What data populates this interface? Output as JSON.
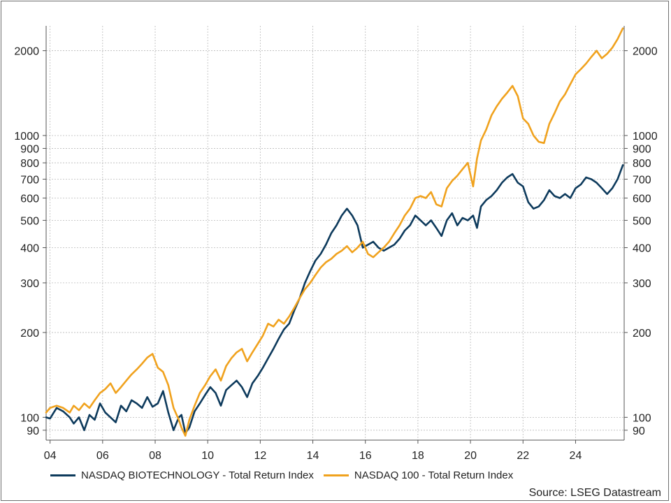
{
  "chart_data": {
    "type": "line",
    "title": "",
    "xlabel": "",
    "ylabel": "",
    "y_scale": "log",
    "ylim": [
      83,
      2450
    ],
    "xlim": [
      2003.85,
      2025.85
    ],
    "grid": true,
    "legend_placement": "bottom-left",
    "x_tick_labels": [
      "04",
      "06",
      "08",
      "10",
      "12",
      "14",
      "16",
      "18",
      "20",
      "22",
      "24"
    ],
    "x_tick_years": [
      2004,
      2006,
      2008,
      2010,
      2012,
      2014,
      2016,
      2018,
      2020,
      2022,
      2024
    ],
    "y_tick_labels": [
      "90",
      "100",
      "200",
      "300",
      "400",
      "500",
      "600",
      "700",
      "800",
      "900",
      "1000",
      "2000"
    ],
    "y_tick_values": [
      90,
      100,
      200,
      300,
      400,
      500,
      600,
      700,
      800,
      900,
      1000,
      2000
    ],
    "series": [
      {
        "name": "NASDAQ BIOTECHNOLOGY - Total Return Index",
        "color": "#0d3a5c",
        "x": [
          2003.85,
          2004.0,
          2004.25,
          2004.5,
          2004.75,
          2004.9,
          2005.1,
          2005.3,
          2005.5,
          2005.7,
          2005.9,
          2006.1,
          2006.3,
          2006.5,
          2006.7,
          2006.9,
          2007.1,
          2007.3,
          2007.5,
          2007.7,
          2007.9,
          2008.1,
          2008.3,
          2008.5,
          2008.7,
          2008.9,
          2009.0,
          2009.15,
          2009.3,
          2009.5,
          2009.7,
          2009.9,
          2010.1,
          2010.3,
          2010.5,
          2010.7,
          2010.9,
          2011.1,
          2011.3,
          2011.5,
          2011.7,
          2011.9,
          2012.1,
          2012.3,
          2012.5,
          2012.7,
          2012.9,
          2013.1,
          2013.3,
          2013.5,
          2013.7,
          2013.9,
          2014.1,
          2014.3,
          2014.5,
          2014.7,
          2014.9,
          2015.1,
          2015.3,
          2015.5,
          2015.7,
          2015.9,
          2016.1,
          2016.3,
          2016.5,
          2016.7,
          2016.9,
          2017.1,
          2017.3,
          2017.5,
          2017.7,
          2017.9,
          2018.1,
          2018.3,
          2018.5,
          2018.7,
          2018.9,
          2019.1,
          2019.3,
          2019.5,
          2019.7,
          2019.9,
          2020.1,
          2020.25,
          2020.4,
          2020.6,
          2020.8,
          2021.0,
          2021.2,
          2021.4,
          2021.6,
          2021.8,
          2022.0,
          2022.2,
          2022.4,
          2022.6,
          2022.8,
          2023.0,
          2023.2,
          2023.4,
          2023.6,
          2023.8,
          2024.0,
          2024.2,
          2024.4,
          2024.6,
          2024.8,
          2025.0,
          2025.2,
          2025.4,
          2025.6,
          2025.8
        ],
        "values": [
          100,
          99,
          108,
          105,
          100,
          95,
          100,
          90,
          102,
          98,
          112,
          104,
          100,
          96,
          110,
          105,
          115,
          112,
          108,
          118,
          109,
          112,
          124,
          104,
          90,
          100,
          102,
          88,
          92,
          105,
          112,
          120,
          128,
          122,
          110,
          125,
          130,
          135,
          128,
          118,
          132,
          140,
          150,
          162,
          175,
          190,
          205,
          215,
          240,
          265,
          300,
          330,
          360,
          380,
          410,
          450,
          480,
          520,
          550,
          520,
          480,
          400,
          410,
          420,
          400,
          390,
          400,
          410,
          430,
          460,
          480,
          520,
          500,
          480,
          500,
          470,
          440,
          500,
          530,
          480,
          510,
          500,
          520,
          470,
          560,
          590,
          610,
          640,
          680,
          710,
          730,
          680,
          660,
          580,
          550,
          560,
          590,
          640,
          610,
          600,
          620,
          600,
          650,
          670,
          710,
          700,
          680,
          650,
          620,
          650,
          700,
          785
        ]
      },
      {
        "name": "NASDAQ 100 - Total Return Index",
        "color": "#f0a21e",
        "x": [
          2003.85,
          2004.0,
          2004.25,
          2004.5,
          2004.75,
          2004.9,
          2005.1,
          2005.3,
          2005.5,
          2005.7,
          2005.9,
          2006.1,
          2006.3,
          2006.5,
          2006.7,
          2006.9,
          2007.1,
          2007.3,
          2007.5,
          2007.7,
          2007.9,
          2008.1,
          2008.3,
          2008.5,
          2008.7,
          2008.9,
          2009.0,
          2009.15,
          2009.3,
          2009.5,
          2009.7,
          2009.9,
          2010.1,
          2010.3,
          2010.5,
          2010.7,
          2010.9,
          2011.1,
          2011.3,
          2011.5,
          2011.7,
          2011.9,
          2012.1,
          2012.3,
          2012.5,
          2012.7,
          2012.9,
          2013.1,
          2013.3,
          2013.5,
          2013.7,
          2013.9,
          2014.1,
          2014.3,
          2014.5,
          2014.7,
          2014.9,
          2015.1,
          2015.3,
          2015.5,
          2015.7,
          2015.9,
          2016.1,
          2016.3,
          2016.5,
          2016.7,
          2016.9,
          2017.1,
          2017.3,
          2017.5,
          2017.7,
          2017.9,
          2018.1,
          2018.3,
          2018.5,
          2018.7,
          2018.9,
          2019.1,
          2019.3,
          2019.5,
          2019.7,
          2019.9,
          2020.1,
          2020.25,
          2020.4,
          2020.6,
          2020.8,
          2021.0,
          2021.2,
          2021.4,
          2021.6,
          2021.8,
          2022.0,
          2022.2,
          2022.4,
          2022.6,
          2022.8,
          2023.0,
          2023.2,
          2023.4,
          2023.6,
          2023.8,
          2024.0,
          2024.2,
          2024.4,
          2024.6,
          2024.8,
          2025.0,
          2025.2,
          2025.4,
          2025.6,
          2025.8
        ],
        "values": [
          104,
          108,
          110,
          108,
          104,
          110,
          106,
          112,
          108,
          115,
          122,
          126,
          132,
          122,
          128,
          135,
          142,
          148,
          155,
          163,
          168,
          150,
          145,
          130,
          108,
          98,
          92,
          86,
          98,
          110,
          122,
          130,
          140,
          148,
          135,
          152,
          162,
          170,
          175,
          158,
          170,
          182,
          195,
          215,
          210,
          222,
          215,
          228,
          245,
          265,
          285,
          300,
          320,
          340,
          355,
          365,
          380,
          390,
          405,
          385,
          400,
          420,
          380,
          370,
          385,
          400,
          420,
          450,
          480,
          520,
          550,
          600,
          610,
          600,
          630,
          570,
          560,
          650,
          690,
          720,
          760,
          800,
          660,
          830,
          960,
          1050,
          1180,
          1270,
          1350,
          1420,
          1500,
          1380,
          1150,
          1100,
          1000,
          950,
          940,
          1100,
          1200,
          1320,
          1400,
          1520,
          1650,
          1720,
          1800,
          1900,
          2000,
          1880,
          1950,
          2050,
          2200,
          2400
        ]
      }
    ]
  },
  "legend": {
    "biotech": "NASDAQ BIOTECHNOLOGY - Total Return Index",
    "nasdaq100": "NASDAQ 100 - Total Return Index"
  },
  "source": "Source: LSEG Datastream",
  "colors": {
    "biotech": "#0d3a5c",
    "nasdaq100": "#f0a21e",
    "grid": "#b9b9b9"
  }
}
